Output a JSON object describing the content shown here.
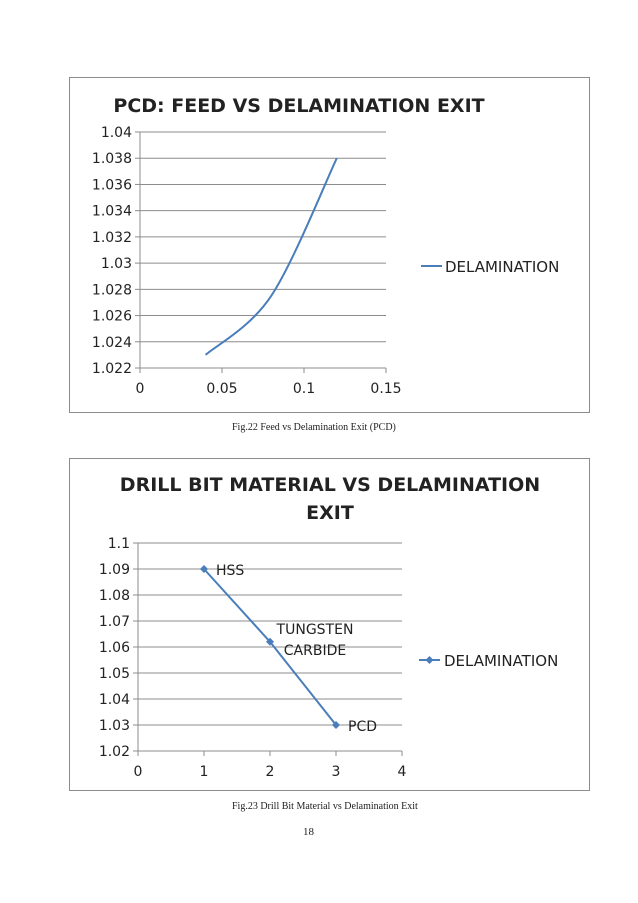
{
  "chart_data": [
    {
      "type": "line",
      "title": "PCD: FEED VS DELAMINATION EXIT",
      "xlabel": "",
      "ylabel": "",
      "xlim": [
        0,
        0.15
      ],
      "ylim": [
        1.022,
        1.04
      ],
      "x_ticks": [
        "0",
        "0.05",
        "0.1",
        "0.15"
      ],
      "y_ticks": [
        "1.022",
        "1.024",
        "1.026",
        "1.028",
        "1.03",
        "1.032",
        "1.034",
        "1.036",
        "1.038",
        "1.04"
      ],
      "grid": true,
      "smooth": true,
      "markers": false,
      "legend_position": "right",
      "series": [
        {
          "name": "DELAMINATION",
          "x": [
            0.04,
            0.08,
            0.12
          ],
          "y": [
            1.023,
            1.0275,
            1.038
          ]
        }
      ],
      "color": "#4a7ebb"
    },
    {
      "type": "line",
      "title_lines": [
        "DRILL BIT MATERIAL VS DELAMINATION",
        "EXIT"
      ],
      "xlabel": "",
      "ylabel": "",
      "xlim": [
        0,
        4
      ],
      "ylim": [
        1.02,
        1.1
      ],
      "x_ticks": [
        "0",
        "1",
        "2",
        "3",
        "4"
      ],
      "y_ticks": [
        "1.02",
        "1.03",
        "1.04",
        "1.05",
        "1.06",
        "1.07",
        "1.08",
        "1.09",
        "1.1"
      ],
      "grid": true,
      "smooth": false,
      "markers": true,
      "legend_position": "right",
      "series": [
        {
          "name": "DELAMINATION",
          "x": [
            1,
            2,
            3
          ],
          "y": [
            1.09,
            1.062,
            1.03
          ]
        }
      ],
      "point_labels": [
        [
          "HSS"
        ],
        [
          "TUNGSTEN",
          "CARBIDE"
        ],
        [
          "PCD"
        ]
      ],
      "color": "#4a7ebb"
    }
  ],
  "captions": {
    "fig22": "Fig.22 Feed vs Delamination Exit (PCD)",
    "fig23": "Fig.23 Drill Bit Material vs Delamination Exit"
  },
  "page_number": "18"
}
